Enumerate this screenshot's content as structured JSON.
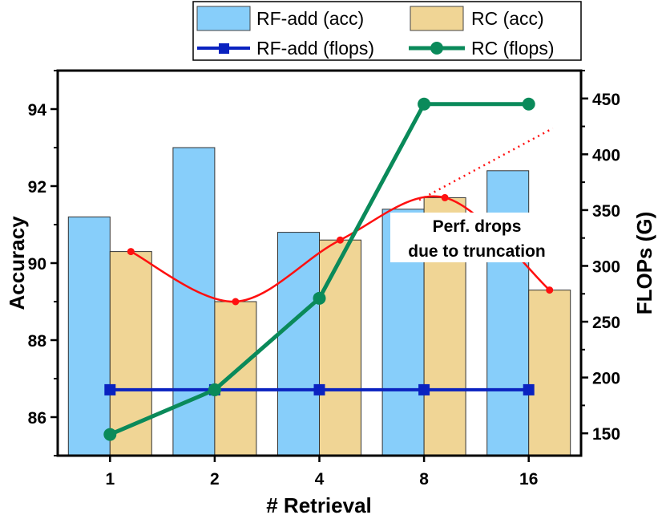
{
  "chart_data": {
    "type": "bar+line",
    "categories": [
      "1",
      "2",
      "4",
      "8",
      "16"
    ],
    "xlabel": "# Retrieval",
    "ylabel_left": "Accuracy",
    "ylabel_right": "FLOPs (G)",
    "ylim_left": [
      85,
      95
    ],
    "yticks_left": [
      "86",
      "88",
      "90",
      "92",
      "94"
    ],
    "ylim_right": [
      130,
      475
    ],
    "yticks_right": [
      "150",
      "200",
      "250",
      "300",
      "350",
      "400",
      "450"
    ],
    "bar_series": [
      {
        "name": "RF-add (acc)",
        "values": [
          91.2,
          93.0,
          90.8,
          91.4,
          92.4
        ],
        "color": "#87cefa"
      },
      {
        "name": "RC (acc)",
        "values": [
          90.3,
          89.0,
          90.6,
          91.7,
          89.3
        ],
        "color": "#f0d595"
      }
    ],
    "line_series": [
      {
        "name": "RF-add (flops)",
        "values": [
          189,
          189,
          189,
          189,
          189
        ],
        "color": "#0a22c0",
        "marker": "square"
      },
      {
        "name": "RC (flops)",
        "values": [
          149,
          189,
          271,
          445,
          445
        ],
        "color": "#0a8a5a",
        "marker": "circle"
      }
    ],
    "trend_curve": {
      "color": "#ff1010",
      "values": [
        90.3,
        89.0,
        90.6,
        91.7,
        89.3
      ]
    },
    "trend_extrapolation": {
      "style": "dotted",
      "color": "#ff1010",
      "from": 91.7,
      "to": 93.5
    },
    "annotation": {
      "line1": "Perf. drops",
      "line2": "due to truncation"
    },
    "legend": {
      "placement": "top",
      "entries": [
        "RF-add (acc)",
        "RC (acc)",
        "RF-add (flops)",
        "RC (flops)"
      ]
    },
    "grid": false
  }
}
